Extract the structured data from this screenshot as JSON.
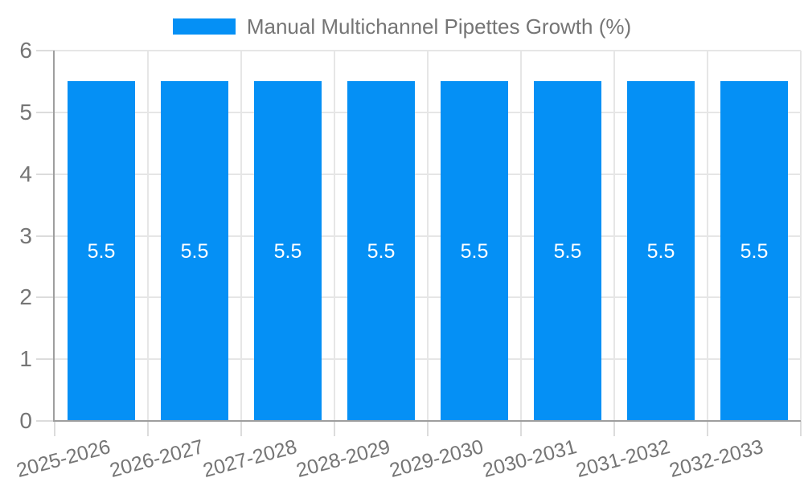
{
  "chart_data": {
    "type": "bar",
    "title": "Manual Multichannel Pipettes Growth (%)",
    "legend_position": "top",
    "categories": [
      "2025-2026",
      "2026-2027",
      "2027-2028",
      "2028-2029",
      "2029-2030",
      "2030-2031",
      "2031-2032",
      "2032-2033"
    ],
    "values": [
      5.5,
      5.5,
      5.5,
      5.5,
      5.5,
      5.5,
      5.5,
      5.5
    ],
    "bar_value_labels": [
      "5.5",
      "5.5",
      "5.5",
      "5.5",
      "5.5",
      "5.5",
      "5.5",
      "5.5"
    ],
    "xlabel": "",
    "ylabel": "",
    "ylim": [
      0,
      6
    ],
    "yticks": [
      "0",
      "1",
      "2",
      "3",
      "4",
      "5",
      "6"
    ],
    "grid": true,
    "x_label_rotation_deg": -15,
    "colors": {
      "bar": "#0590f5",
      "bar_label_text": "#ffffff",
      "axis_text": "#757575",
      "axis_line": "#9e9e9e",
      "gridline": "#e6e6e6",
      "tick": "#dcdcdc",
      "background": "#ffffff"
    }
  }
}
